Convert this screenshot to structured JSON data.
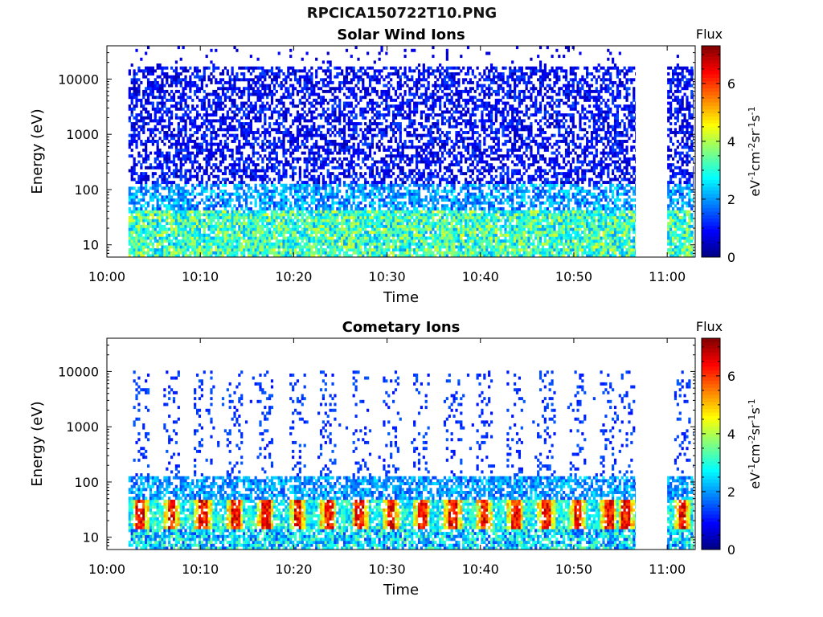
{
  "page": {
    "title": "RPCICA150722T10.PNG"
  },
  "colors": {
    "colormap": "jet",
    "stops": [
      "#00007f",
      "#0000ff",
      "#007fff",
      "#00ffff",
      "#7fff7f",
      "#ffff00",
      "#ff7f00",
      "#ff0000",
      "#7f0000"
    ]
  },
  "chart_data": [
    {
      "type": "heatmap",
      "title": "Solar Wind Ions",
      "xlabel": "Time",
      "ylabel": "Energy (eV)",
      "yscale": "log",
      "ylim": [
        6,
        40000
      ],
      "y_ticks": [
        10,
        100,
        1000,
        10000
      ],
      "y_tick_labels": [
        "10",
        "100",
        "1000",
        "10000"
      ],
      "x_ticks_min": [
        0,
        10,
        20,
        30,
        40,
        50,
        60
      ],
      "x_tick_labels": [
        "10:00",
        "10:10",
        "10:20",
        "10:30",
        "10:40",
        "10:50",
        "11:00"
      ],
      "xlim_min": [
        0,
        63
      ],
      "data_time_ranges_min": [
        [
          2.3,
          56.6
        ],
        [
          60.0,
          62.8
        ]
      ],
      "colorbar": {
        "title": "Flux",
        "label": "eV-1cm-2sr-1s-1",
        "range": [
          0,
          7.3
        ],
        "ticks": [
          0,
          2,
          4,
          6
        ]
      },
      "typical_flux_by_energy": [
        {
          "energy_range_eV": [
            6,
            40
          ],
          "flux": 3.2
        },
        {
          "energy_range_eV": [
            40,
            120
          ],
          "flux": 2.0
        },
        {
          "energy_range_eV": [
            120,
            16000
          ],
          "flux": 0.9
        },
        {
          "energy_range_eV": [
            16000,
            40000
          ],
          "flux": 0.4
        }
      ]
    },
    {
      "type": "heatmap",
      "title": "Cometary Ions",
      "xlabel": "Time",
      "ylabel": "Energy (eV)",
      "yscale": "log",
      "ylim": [
        6,
        40000
      ],
      "y_ticks": [
        10,
        100,
        1000,
        10000
      ],
      "y_tick_labels": [
        "10",
        "100",
        "1000",
        "10000"
      ],
      "x_ticks_min": [
        0,
        10,
        20,
        30,
        40,
        50,
        60
      ],
      "x_tick_labels": [
        "10:00",
        "10:10",
        "10:20",
        "10:30",
        "10:40",
        "10:50",
        "11:00"
      ],
      "xlim_min": [
        0,
        63
      ],
      "data_time_ranges_min": [
        [
          2.3,
          56.6
        ],
        [
          60.0,
          62.8
        ]
      ],
      "colorbar": {
        "title": "Flux",
        "label": "eV-1cm-2sr-1s-1",
        "range": [
          0,
          7.3
        ],
        "ticks": [
          0,
          2,
          4,
          6
        ]
      },
      "typical_flux_by_energy": [
        {
          "energy_range_eV": [
            6,
            14
          ],
          "flux": 2.5
        },
        {
          "energy_range_eV": [
            14,
            50
          ],
          "flux": 5.5
        },
        {
          "energy_range_eV": [
            50,
            125
          ],
          "flux": 2.0
        },
        {
          "energy_range_eV": [
            125,
            11000
          ],
          "flux": 1.0
        }
      ],
      "peak_flux": 7.0,
      "periodic_bursts_min": [
        3.5,
        6.8,
        10.2,
        13.6,
        16.9,
        20.3,
        23.6,
        27.0,
        30.3,
        33.6,
        36.9,
        40.3,
        43.6,
        46.9,
        50.3,
        53.6,
        55.5,
        61.5
      ]
    }
  ]
}
